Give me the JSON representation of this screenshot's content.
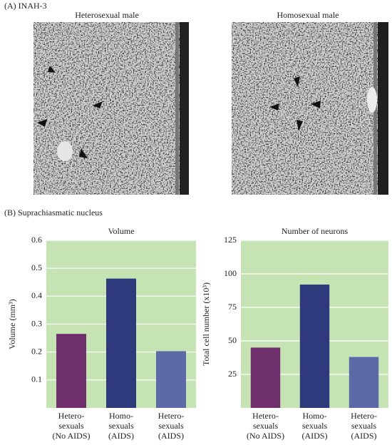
{
  "panel_a": {
    "label": "(A) INAH-3",
    "images": [
      "Heterosexual male",
      "Homosexual male"
    ]
  },
  "panel_b": {
    "label": "(B) Suprachiasmatic nucleus"
  },
  "chart_data": [
    {
      "type": "bar",
      "title": "Volume",
      "y_label": "Volume (mm³)",
      "categories": [
        [
          "Hetero-",
          "sexuals",
          "(No AIDS)"
        ],
        [
          "Homo-",
          "sexuals",
          "(AIDS)"
        ],
        [
          "Hetero-",
          "sexuals",
          "(AIDS)"
        ]
      ],
      "values": [
        0.265,
        0.463,
        0.203
      ],
      "colors": [
        "#6e2f6c",
        "#2f3a7c",
        "#5d68a6"
      ],
      "ylim": [
        0,
        0.6
      ],
      "yticks": [
        0.1,
        0.2,
        0.3,
        0.4,
        0.5,
        0.6
      ],
      "grid": true,
      "background": "#c6e3b4"
    },
    {
      "type": "bar",
      "title": "Number of neurons",
      "y_label": "Total cell number (x10³)",
      "categories": [
        [
          "Hetero-",
          "sexuals",
          "(No AIDS)"
        ],
        [
          "Homo-",
          "sexuals",
          "(AIDS)"
        ],
        [
          "Hetero-",
          "sexuals",
          "(AIDS)"
        ]
      ],
      "values": [
        45,
        92,
        38
      ],
      "colors": [
        "#6e2f6c",
        "#2f3a7c",
        "#5d68a6"
      ],
      "ylim": [
        0,
        125
      ],
      "yticks": [
        25,
        50,
        75,
        100,
        125
      ],
      "grid": true,
      "background": "#c6e3b4"
    }
  ]
}
